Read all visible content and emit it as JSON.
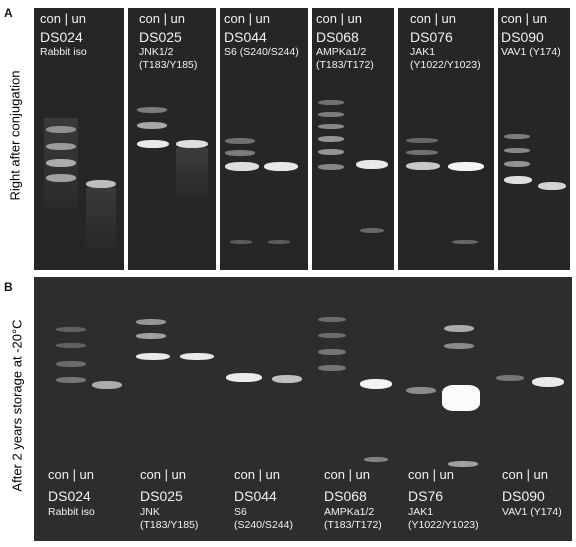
{
  "panel_a": {
    "letter": "A",
    "side_label": "Right after conjugation",
    "gels": [
      {
        "header": "con | un",
        "code": "DS024",
        "target": [
          "Rabbit iso"
        ]
      },
      {
        "header": "con | un",
        "code": "DS025",
        "target": [
          "JNK1/2",
          "(T183/Y185)"
        ]
      },
      {
        "header": "con | un",
        "code": "DS044",
        "target": [
          "S6 (S240/S244)"
        ]
      },
      {
        "header": "con | un",
        "code": "DS068",
        "target": [
          "AMPKa1/2",
          "(T183/T172)"
        ]
      },
      {
        "header": "con | un",
        "code": "DS076",
        "target": [
          "JAK1",
          "(Y1022/Y1023)"
        ]
      },
      {
        "header": "con | un",
        "code": "DS090",
        "target": [
          "VAV1 (Y174)"
        ]
      }
    ]
  },
  "panel_b": {
    "letter": "B",
    "side_label": "After 2 years storage at -20°C",
    "gels": [
      {
        "header": "con | un",
        "code": "DS024",
        "target": [
          "Rabbit iso"
        ]
      },
      {
        "header": "con | un",
        "code": "DS025",
        "target": [
          "JNK",
          "(T183/Y185)"
        ]
      },
      {
        "header": "con | un",
        "code": "DS044",
        "target": [
          "S6",
          "(S240/S244)"
        ]
      },
      {
        "header": "con | un",
        "code": "DS068",
        "target": [
          "AMPKa1/2",
          "(T183/T172)"
        ]
      },
      {
        "header": "con | un",
        "code": "DS76",
        "target": [
          "JAK1",
          "(Y1022/Y1023)"
        ]
      },
      {
        "header": "con | un",
        "code": "DS090",
        "target": [
          "VAV1 (Y174)"
        ]
      }
    ]
  },
  "colors": {
    "gel_background": "#262626",
    "band": "#ffffff",
    "label_text": "#f2f2f2"
  }
}
